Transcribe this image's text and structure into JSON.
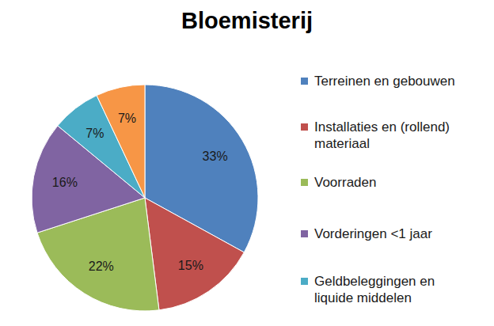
{
  "chart_data": {
    "type": "pie",
    "title": "Bloemisterij",
    "categories": [
      "Terreinen en gebouwen",
      "Installaties en (rollend) materiaal",
      "Voorraden",
      "Vorderingen <1 jaar",
      "Geldbeleggingen en liquide middelen",
      null
    ],
    "values": [
      33,
      15,
      22,
      16,
      7,
      7
    ],
    "value_labels": [
      "33%",
      "15%",
      "22%",
      "16%",
      "7%",
      "7%"
    ],
    "colors": [
      "#4f81bd",
      "#c0504d",
      "#9bbb59",
      "#8064a2",
      "#4bacc6",
      "#f79646"
    ],
    "data_labels": true,
    "legend": "right"
  }
}
